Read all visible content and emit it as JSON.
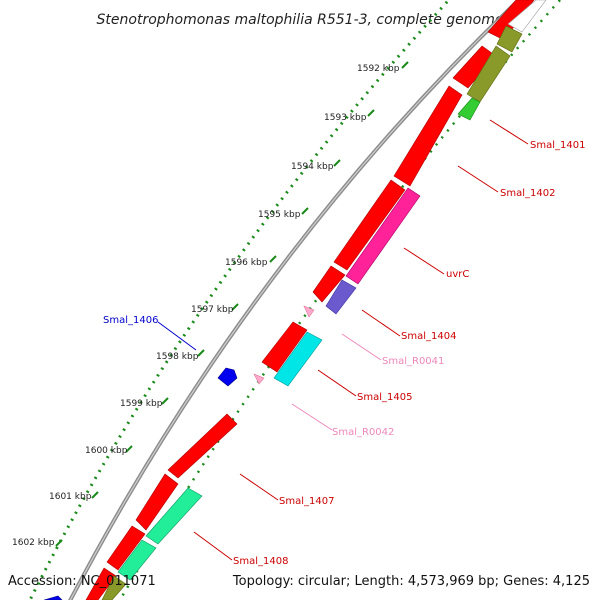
{
  "title": "Stenotrophomonas maltophilia R551-3, complete genome",
  "footer": {
    "accession": "Accession: NC_011071",
    "topology": "Topology: circular; Length: 4,573,969 bp; Genes: 4,125"
  },
  "colors": {
    "backbone": "#8c8c8c",
    "ruler": "#1a8a1a",
    "cds_forward": "#ff0000",
    "label_red": "#cc0000",
    "label_blue": "#0000cc",
    "label_pink": "#ee88bb"
  },
  "ruler_labels": [
    "1592 kbp",
    "1593 kbp",
    "1594 kbp",
    "1595 kbp",
    "1596 kbp",
    "1597 kbp",
    "1598 kbp",
    "1599 kbp",
    "1600 kbp",
    "1601 kbp",
    "1602 kbp"
  ],
  "gene_labels": [
    {
      "name": "Smal_1401",
      "color": "#cc0000"
    },
    {
      "name": "Smal_1402",
      "color": "#cc0000"
    },
    {
      "name": "uvrC",
      "color": "#cc0000"
    },
    {
      "name": "Smal_1404",
      "color": "#cc0000"
    },
    {
      "name": "Smal_R0041",
      "color": "#ee88bb"
    },
    {
      "name": "Smal_1405",
      "color": "#cc0000"
    },
    {
      "name": "Smal_R0042",
      "color": "#ee88bb"
    },
    {
      "name": "Smal_1406",
      "color": "#0000cc"
    },
    {
      "name": "Smal_1407",
      "color": "#cc0000"
    },
    {
      "name": "Smal_1408",
      "color": "#cc0000"
    }
  ]
}
